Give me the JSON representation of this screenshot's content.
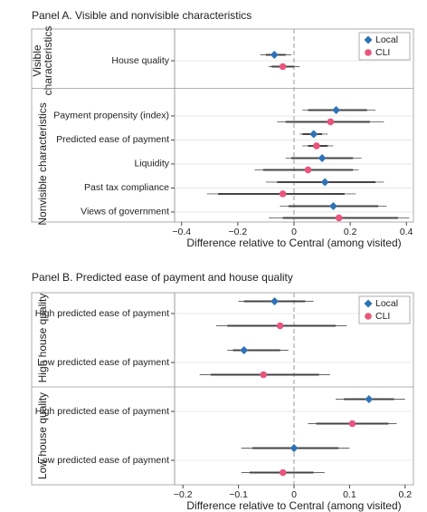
{
  "chart_data": [
    {
      "type": "dot",
      "title": "Panel A. Visible and nonvisible characteristics",
      "xlabel": "Difference relative to Central (among visited)",
      "xlim": [
        -0.425,
        0.425
      ],
      "xticks": [
        {
          "value": -0.4,
          "label": "−0.4"
        },
        {
          "value": -0.2,
          "label": "−0.2"
        },
        0,
        0.2,
        0.4
      ],
      "groups": [
        {
          "label_lines": [
            "Visible",
            "characteristics"
          ],
          "categories": [
            "House quality"
          ]
        },
        {
          "label_lines": [
            "Nonvisible characteristics"
          ],
          "categories": [
            "Payment propensity (index)",
            "Predicted ease of payment",
            "Liquidity",
            "Past tax compliance",
            "Views of government"
          ]
        }
      ],
      "series": [
        {
          "name": "Local",
          "color": "#2f72b5",
          "marker": "diamond",
          "values": [
            -0.07,
            0.15,
            0.07,
            0.1,
            0.11,
            0.14
          ],
          "ci95": [
            [
              -0.12,
              -0.01
            ],
            [
              0.03,
              0.29
            ],
            [
              0.02,
              0.12
            ],
            [
              -0.03,
              0.24
            ],
            [
              -0.1,
              0.32
            ],
            [
              -0.05,
              0.33
            ]
          ],
          "ci90": [
            [
              -0.1,
              -0.03
            ],
            [
              0.05,
              0.26
            ],
            [
              0.03,
              0.1
            ],
            [
              -0.01,
              0.21
            ],
            [
              -0.06,
              0.29
            ],
            [
              -0.02,
              0.3
            ]
          ]
        },
        {
          "name": "CLI",
          "color": "#e9557c",
          "marker": "circle",
          "values": [
            -0.04,
            0.13,
            0.08,
            0.05,
            -0.04,
            0.16
          ],
          "ci95": [
            [
              -0.09,
              0.02
            ],
            [
              -0.06,
              0.32
            ],
            [
              0.03,
              0.14
            ],
            [
              -0.14,
              0.23
            ],
            [
              -0.31,
              0.22
            ],
            [
              -0.09,
              0.41
            ]
          ],
          "ci90": [
            [
              -0.08,
              0.0
            ],
            [
              -0.03,
              0.27
            ],
            [
              0.05,
              0.12
            ],
            [
              -0.11,
              0.21
            ],
            [
              -0.27,
              0.18
            ],
            [
              -0.04,
              0.37
            ]
          ]
        }
      ]
    },
    {
      "type": "dot",
      "title": "Panel B. Predicted ease of payment and house quality",
      "xlabel": "Difference relative to Central (among visited)",
      "xlim": [
        -0.215,
        0.215
      ],
      "xticks": [
        {
          "value": -0.2,
          "label": "−0.2"
        },
        {
          "value": -0.1,
          "label": "−0.1"
        },
        0,
        0.1,
        0.2
      ],
      "groups": [
        {
          "label_lines": [
            "High house quality"
          ],
          "categories": [
            "High predicted ease of payment",
            "Low predicted ease of payment"
          ]
        },
        {
          "label_lines": [
            "Low house quality"
          ],
          "categories": [
            "High predicted ease of payment",
            "Low predicted ease of payment"
          ]
        }
      ],
      "series": [
        {
          "name": "Local",
          "color": "#2f72b5",
          "marker": "diamond",
          "values": [
            -0.035,
            -0.09,
            0.135,
            0.0
          ],
          "ci95": [
            [
              -0.1,
              0.035
            ],
            [
              -0.12,
              -0.01
            ],
            [
              0.075,
              0.2
            ],
            [
              -0.095,
              0.1
            ]
          ],
          "ci90": [
            [
              -0.09,
              0.02
            ],
            [
              -0.11,
              -0.025
            ],
            [
              0.09,
              0.18
            ],
            [
              -0.075,
              0.08
            ]
          ]
        },
        {
          "name": "CLI",
          "color": "#e9557c",
          "marker": "circle",
          "values": [
            -0.025,
            -0.055,
            0.105,
            -0.02
          ],
          "ci95": [
            [
              -0.14,
              0.095
            ],
            [
              -0.17,
              0.065
            ],
            [
              0.025,
              0.185
            ],
            [
              -0.095,
              0.055
            ]
          ],
          "ci90": [
            [
              -0.12,
              0.075
            ],
            [
              -0.15,
              0.045
            ],
            [
              0.04,
              0.17
            ],
            [
              -0.08,
              0.035
            ]
          ]
        }
      ]
    }
  ]
}
